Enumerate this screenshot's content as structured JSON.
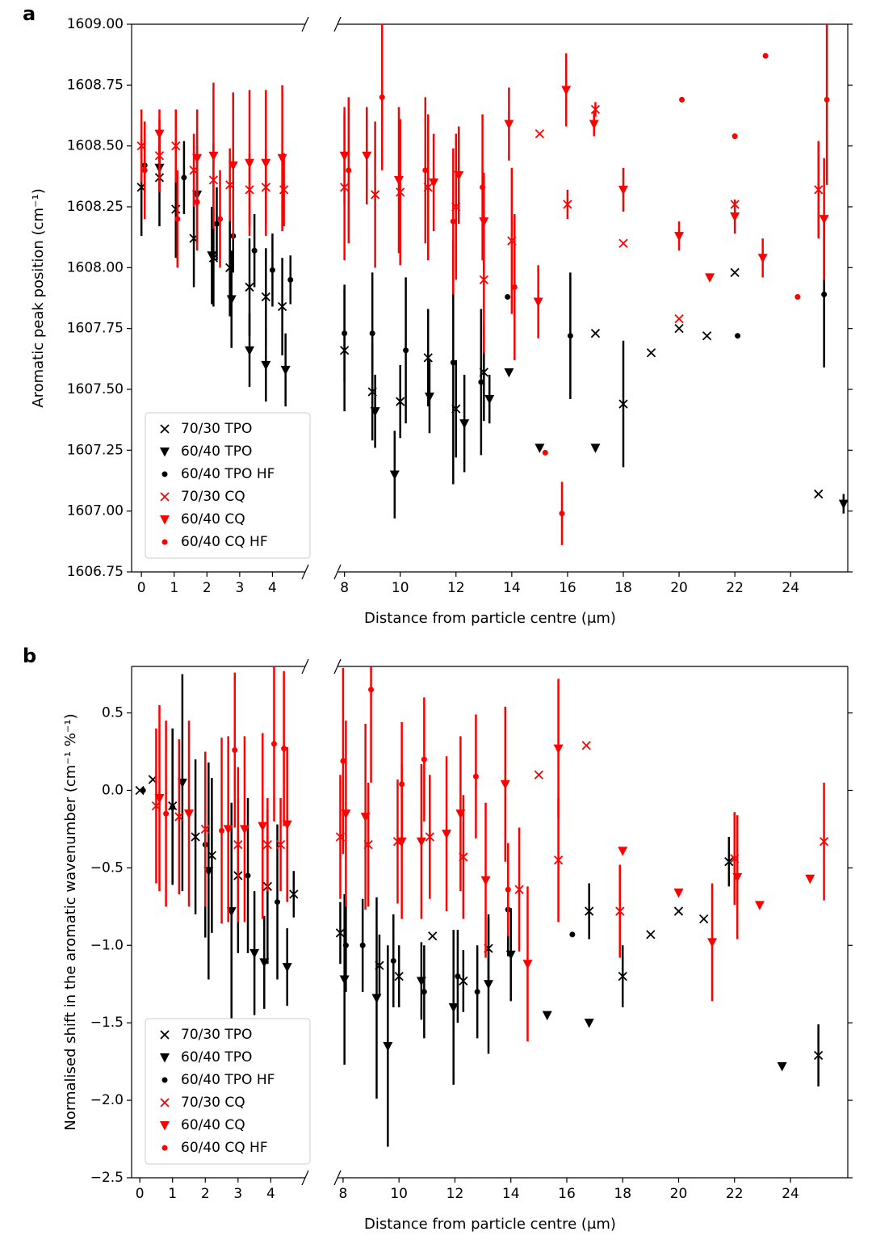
{
  "chart_data": [
    {
      "type": "scatter",
      "label": "a",
      "xlabel": "Distance from particle centre (μm)",
      "ylabel": "Aromatic peak position (cm⁻¹)",
      "ylim": [
        1606.75,
        1609
      ],
      "yticks": [
        1606.75,
        {
          "value": 1607,
          "label": "1607.00"
        },
        1607.25,
        {
          "value": 1607.5,
          "label": "1607.50"
        },
        1607.75,
        {
          "value": 1608,
          "label": "1608.00"
        },
        1608.25,
        {
          "value": 1608.5,
          "label": "1608.50"
        },
        1608.75,
        {
          "value": 1609,
          "label": "1609.00"
        }
      ],
      "x_segments": [
        {
          "xlim": [
            -0.3,
            5.0
          ],
          "xticks": [
            0,
            1,
            2,
            3,
            4
          ]
        },
        {
          "xlim": [
            7.75,
            26.05
          ],
          "xticks": [
            8,
            10,
            12,
            14,
            16,
            18,
            20,
            22,
            24
          ]
        }
      ],
      "legend": "lower left",
      "series": [
        {
          "name": "70/30 TPO",
          "color": "#000000",
          "marker": "x",
          "x": [
            0,
            0.55,
            1.05,
            1.6,
            2.2,
            2.7,
            3.3,
            3.8,
            4.3,
            8,
            9,
            10,
            11,
            12,
            13,
            17,
            18,
            19,
            20,
            21,
            22,
            25
          ],
          "values": [
            1608.33,
            1608.37,
            1608.24,
            1608.12,
            1608.04,
            1608.0,
            1607.92,
            1607.88,
            1607.84,
            1607.66,
            1607.49,
            1607.45,
            1607.63,
            1607.42,
            1607.57,
            1607.73,
            1607.44,
            1607.65,
            1607.75,
            1607.72,
            1607.98,
            1607.07
          ],
          "errors": [
            0.2,
            0.2,
            0.2,
            0.2,
            0.2,
            0.2,
            0.2,
            0.2,
            0.2,
            0.25,
            0.2,
            0.15,
            0.2,
            0.2,
            0.2,
            null,
            0.26,
            null,
            null,
            null,
            null,
            null
          ]
        },
        {
          "name": "60/40 TPO",
          "color": "#000000",
          "marker": "v",
          "x": [
            0.55,
            1.7,
            2.15,
            2.75,
            3.3,
            3.8,
            4.4,
            9.1,
            9.8,
            11.05,
            12.3,
            13.2,
            13.9,
            15,
            17,
            25.9
          ],
          "values": [
            1608.41,
            1608.3,
            1608.05,
            1607.87,
            1607.66,
            1607.6,
            1607.58,
            1607.41,
            1607.15,
            1607.47,
            1607.36,
            1607.46,
            1607.57,
            1607.26,
            1607.26,
            1607.03
          ],
          "errors": [
            0.1,
            0.2,
            0.2,
            0.2,
            0.15,
            0.15,
            0.15,
            0.15,
            0.18,
            0.15,
            0.2,
            0.1,
            null,
            null,
            null,
            0.04
          ]
        },
        {
          "name": "60/40 TPO HF",
          "color": "#000000",
          "marker": "o",
          "x": [
            0.1,
            1.3,
            2.3,
            2.8,
            3.45,
            4,
            4.55,
            8,
            9,
            10.2,
            11.9,
            12.9,
            13.85,
            16.1,
            22.1,
            25.2
          ],
          "values": [
            1608.42,
            1608.37,
            1608.18,
            1608.13,
            1608.07,
            1607.99,
            1607.95,
            1607.73,
            1607.73,
            1607.66,
            1607.61,
            1607.53,
            1607.88,
            1607.72,
            1607.72,
            1607.89
          ],
          "errors": [
            0.15,
            0.15,
            0.15,
            0.15,
            0.15,
            0.15,
            0.1,
            0.2,
            0.25,
            0.3,
            0.5,
            0.3,
            null,
            0.26,
            null,
            0.3
          ]
        },
        {
          "name": "70/30 CQ",
          "color": "#ff0000",
          "marker": "x",
          "x": [
            0,
            0.55,
            1.05,
            1.6,
            2.2,
            2.7,
            3.3,
            3.8,
            4.35,
            8,
            9.1,
            10,
            11,
            12,
            13,
            14,
            15,
            16,
            17,
            18,
            20,
            22,
            25
          ],
          "values": [
            1608.5,
            1608.46,
            1608.5,
            1608.4,
            1608.36,
            1608.34,
            1608.32,
            1608.33,
            1608.32,
            1608.33,
            1608.3,
            1608.31,
            1608.33,
            1608.25,
            1607.95,
            1608.11,
            1608.55,
            1608.26,
            1608.65,
            1608.1,
            1607.79,
            1608.26,
            1608.32
          ],
          "errors": [
            0.15,
            0.15,
            0.15,
            0.15,
            0.15,
            0.15,
            0.15,
            0.15,
            0.15,
            0.3,
            0.3,
            0.3,
            0.3,
            0.3,
            0.3,
            0.3,
            null,
            0.06,
            0.03,
            null,
            null,
            null,
            0.2
          ]
        },
        {
          "name": "60/40 CQ",
          "color": "#ff0000",
          "marker": "v",
          "x": [
            0.55,
            1.7,
            2.2,
            2.8,
            3.3,
            3.8,
            4.3,
            8,
            8.8,
            9.95,
            11.2,
            12.1,
            13,
            13.9,
            14.95,
            15.95,
            16.95,
            18,
            20,
            21.1,
            22,
            23,
            25.2
          ],
          "values": [
            1608.55,
            1608.45,
            1608.46,
            1608.42,
            1608.43,
            1608.43,
            1608.45,
            1608.46,
            1608.46,
            1608.36,
            1608.35,
            1608.38,
            1608.19,
            1608.59,
            1607.86,
            1608.73,
            1608.59,
            1608.32,
            1608.13,
            1607.96,
            1608.21,
            1608.04,
            1608.2
          ],
          "errors": [
            0.1,
            0.2,
            0.3,
            0.3,
            0.3,
            0.3,
            0.3,
            0.2,
            0.2,
            0.3,
            0.2,
            0.2,
            0.2,
            0.15,
            0.15,
            0.15,
            0.05,
            0.09,
            0.06,
            null,
            0.07,
            0.08,
            0.25
          ]
        },
        {
          "name": "60/40 CQ HF",
          "color": "#ff0000",
          "marker": "o",
          "x": [
            0.1,
            1.1,
            1.7,
            2.4,
            8.15,
            9.35,
            10.9,
            11.9,
            12.95,
            14.1,
            15.2,
            15.8,
            20.1,
            22,
            23.1,
            24.25,
            25.3
          ],
          "values": [
            1608.4,
            1608.2,
            1608.27,
            1608.2,
            1608.4,
            1608.7,
            1608.4,
            1608.19,
            1608.33,
            1607.92,
            1607.24,
            1606.99,
            1608.69,
            1608.54,
            1608.87,
            1607.88,
            1608.69
          ],
          "errors": [
            0.2,
            0.2,
            0.2,
            0.2,
            0.3,
            0.3,
            0.3,
            0.3,
            0.3,
            0.3,
            null,
            0.13,
            null,
            null,
            null,
            null,
            0.35
          ]
        }
      ]
    },
    {
      "type": "scatter",
      "label": "b",
      "xlabel": "Distance from particle centre (μm)",
      "ylabel": "Normalised shift in the aromatic wavenumber  (cm⁻¹ %⁻¹)",
      "ylim": [
        -2.5,
        0.8
      ],
      "yticks": [
        {
          "value": -2.5,
          "label": "−2.5"
        },
        {
          "value": -2,
          "label": "−2.0"
        },
        {
          "value": -1.5,
          "label": "−1.5"
        },
        {
          "value": -1,
          "label": "−1.0"
        },
        {
          "value": -0.5,
          "label": "−0.5"
        },
        {
          "value": 0,
          "label": "0.0"
        },
        0.5
      ],
      "x_segments": [
        {
          "xlim": [
            -0.25,
            5.05
          ],
          "xticks": [
            0,
            1,
            2,
            3,
            4
          ]
        },
        {
          "xlim": [
            7.8,
            26.05
          ],
          "xticks": [
            8,
            10,
            12,
            14,
            16,
            18,
            20,
            22,
            24
          ]
        }
      ],
      "legend": "lower left",
      "series": [
        {
          "name": "70/30 TPO",
          "color": "#000000",
          "marker": "x",
          "x": [
            0,
            0.4,
            1,
            1.7,
            2.2,
            3,
            3.9,
            4.7,
            7.9,
            9.3,
            10,
            11.2,
            12.3,
            13.2,
            16.8,
            18,
            19,
            20,
            20.9,
            21.8,
            25
          ],
          "values": [
            0,
            0.07,
            -0.1,
            -0.3,
            -0.42,
            -0.55,
            -0.62,
            -0.67,
            -0.92,
            -1.13,
            -1.2,
            -0.94,
            -1.23,
            -1.02,
            -0.78,
            -1.2,
            -0.93,
            -0.78,
            -0.83,
            -0.46,
            -1.71
          ],
          "errors": [
            null,
            null,
            0.5,
            0.5,
            0.5,
            0.5,
            0.5,
            0.15,
            0.2,
            0.2,
            0.2,
            null,
            0.2,
            0.2,
            0.18,
            0.2,
            null,
            null,
            null,
            0.16,
            0.2
          ]
        },
        {
          "name": "60/40 TPO",
          "color": "#000000",
          "marker": "v",
          "x": [
            1.3,
            2.1,
            2.8,
            3.5,
            3.8,
            4.5,
            8.05,
            9.2,
            9.6,
            10.8,
            11.95,
            13.2,
            14,
            15.3,
            16.8,
            23.7
          ],
          "values": [
            0.05,
            -0.52,
            -0.78,
            -1.05,
            -1.11,
            -1.14,
            -1.22,
            -1.34,
            -1.65,
            -1.23,
            -1.4,
            -1.25,
            -1.06,
            -1.45,
            -1.5,
            -1.78
          ],
          "errors": [
            0.7,
            0.7,
            0.7,
            0.4,
            0.3,
            0.25,
            0.55,
            0.65,
            0.65,
            0.25,
            0.5,
            0.45,
            0.3,
            null,
            null,
            null
          ]
        },
        {
          "name": "60/40 TPO HF",
          "color": "#000000",
          "marker": "o",
          "x": [
            0.1,
            1,
            2,
            3.3,
            4.2,
            8.1,
            8.7,
            9.8,
            10.9,
            12.1,
            12.8,
            13.9,
            16.2
          ],
          "values": [
            0,
            -0.11,
            -0.35,
            -0.55,
            -0.72,
            -1,
            -1,
            -1.1,
            -1.3,
            -1.2,
            -1.3,
            -0.77,
            -0.93
          ],
          "errors": [
            null,
            0.5,
            0.6,
            0.5,
            0.5,
            0.3,
            0.3,
            0.3,
            0.3,
            0.3,
            0.3,
            0.3,
            null
          ]
        },
        {
          "name": "70/30 CQ",
          "color": "#ff0000",
          "marker": "x",
          "x": [
            0.5,
            1.2,
            2,
            3,
            3.9,
            4.3,
            7.9,
            8.9,
            9.95,
            11.1,
            12.3,
            14.3,
            15,
            15.7,
            16.7,
            17.9,
            22,
            25.2
          ],
          "values": [
            -0.1,
            -0.17,
            -0.25,
            -0.35,
            -0.35,
            -0.35,
            -0.3,
            -0.35,
            -0.33,
            -0.3,
            -0.43,
            -0.64,
            0.1,
            -0.45,
            0.29,
            -0.78,
            -0.44,
            -0.33
          ],
          "errors": [
            0.5,
            0.5,
            0.5,
            0.5,
            0.3,
            0.3,
            0.4,
            0.4,
            0.4,
            0.4,
            0.4,
            0.4,
            null,
            0.4,
            null,
            0.3,
            0.3,
            0.38
          ]
        },
        {
          "name": "60/40 CQ",
          "color": "#ff0000",
          "marker": "v",
          "x": [
            0.6,
            1.5,
            2.7,
            3.2,
            3.75,
            4.5,
            8.1,
            8.8,
            10.1,
            10.8,
            11.7,
            12.2,
            13.1,
            13.8,
            14.6,
            15.7,
            18,
            20,
            21.2,
            22.1,
            22.9,
            24.7
          ],
          "values": [
            -0.05,
            -0.15,
            -0.25,
            -0.25,
            -0.23,
            -0.22,
            -0.15,
            -0.17,
            -0.33,
            -0.33,
            -0.28,
            -0.15,
            -0.58,
            0.04,
            -1.12,
            0.27,
            -0.39,
            -0.66,
            -0.98,
            -0.56,
            -0.74,
            -0.57
          ],
          "errors": [
            0.6,
            0.6,
            0.6,
            0.6,
            0.6,
            0.5,
            0.6,
            0.6,
            0.5,
            0.5,
            0.5,
            0.5,
            0.5,
            0.5,
            0.5,
            0.45,
            null,
            null,
            0.38,
            0.4,
            null,
            null
          ]
        },
        {
          "name": "60/40 CQ HF",
          "color": "#ff0000",
          "marker": "o",
          "x": [
            0.8,
            2.5,
            2.9,
            4.1,
            4.4,
            8,
            9,
            10.1,
            10.9,
            12.75,
            13.9
          ],
          "values": [
            -0.15,
            -0.26,
            0.26,
            0.3,
            0.27,
            0.19,
            0.65,
            0.04,
            0.2,
            0.09,
            -0.64
          ],
          "errors": [
            0.6,
            0.6,
            0.5,
            0.5,
            0.5,
            0.6,
            0.6,
            0.4,
            0.4,
            0.4,
            0.3
          ]
        }
      ]
    }
  ]
}
